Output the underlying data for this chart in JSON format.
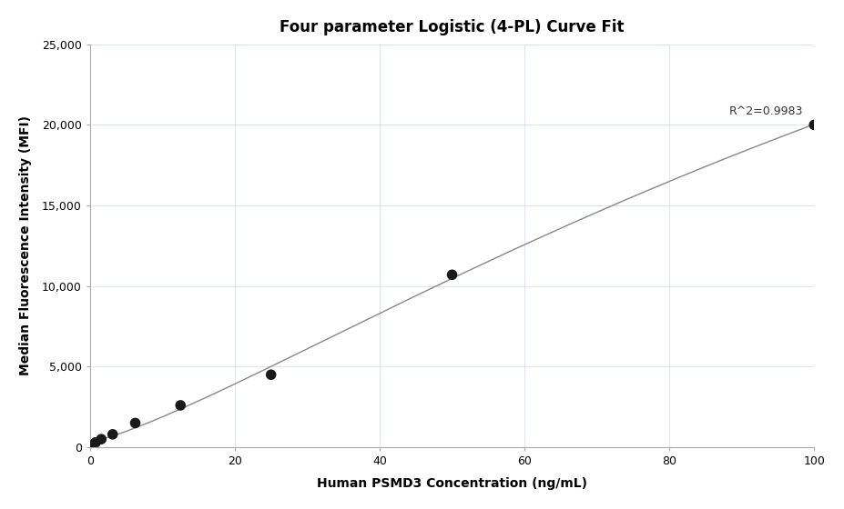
{
  "title": "Four parameter Logistic (4-PL) Curve Fit",
  "xlabel": "Human PSMD3 Concentration (ng/mL)",
  "ylabel": "Median Fluorescence Intensity (MFI)",
  "x_data": [
    0.39,
    0.78,
    1.56,
    3.13,
    6.25,
    12.5,
    25,
    50,
    100
  ],
  "y_data": [
    150,
    300,
    500,
    800,
    1500,
    2600,
    4500,
    10700,
    20000
  ],
  "r_squared": "R^2=0.9983",
  "xlim": [
    0,
    100
  ],
  "ylim": [
    0,
    25000
  ],
  "yticks": [
    0,
    5000,
    10000,
    15000,
    20000,
    25000
  ],
  "xticks": [
    0,
    20,
    40,
    60,
    80,
    100
  ],
  "dot_color": "#1a1a1a",
  "dot_size": 70,
  "line_color": "#888888",
  "line_width": 1.0,
  "bg_color": "#ffffff",
  "grid_color": "#d0dae8",
  "grid_linewidth": 0.5,
  "title_fontsize": 12,
  "label_fontsize": 10,
  "tick_fontsize": 9,
  "spine_color": "#aaaaaa",
  "annotation_fontsize": 9
}
